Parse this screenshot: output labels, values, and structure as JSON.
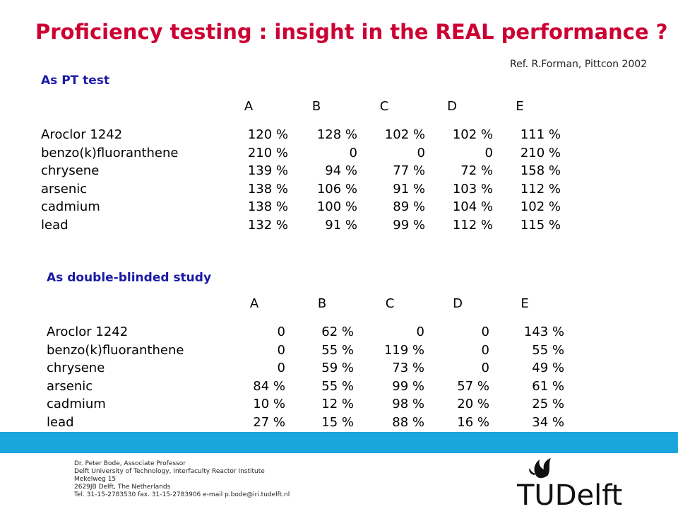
{
  "title": "Proficiency testing : insight in the REAL performance ?",
  "reference": "Ref. R.Forman, Pittcon 2002",
  "sections": [
    {
      "heading": "As PT test",
      "columns": [
        "A",
        "B",
        "C",
        "D",
        "E"
      ],
      "rows": [
        {
          "label": "Aroclor 1242",
          "values": [
            "120 %",
            "128 %",
            "102 %",
            "102 %",
            "111 %"
          ]
        },
        {
          "label": "benzo(k)fluoranthene",
          "values": [
            "210 %",
            "0",
            "0",
            "0",
            "210 %"
          ]
        },
        {
          "label": "chrysene",
          "values": [
            "139 %",
            "94 %",
            "77 %",
            "72 %",
            "158 %"
          ]
        },
        {
          "label": "arsenic",
          "values": [
            "138 %",
            "106 %",
            "91 %",
            "103 %",
            "112 %"
          ]
        },
        {
          "label": "cadmium",
          "values": [
            "138 %",
            "100 %",
            "89 %",
            "104 %",
            "102 %"
          ]
        },
        {
          "label": "lead",
          "values": [
            "132 %",
            "91 %",
            "99 %",
            "112 %",
            "115 %"
          ]
        }
      ]
    },
    {
      "heading": "As double-blinded  study",
      "columns": [
        "A",
        "B",
        "C",
        "D",
        "E"
      ],
      "rows": [
        {
          "label": "Aroclor 1242",
          "values": [
            "0",
            "62 %",
            "0",
            "0",
            "143 %"
          ]
        },
        {
          "label": "benzo(k)fluoranthene",
          "values": [
            "0",
            "55 %",
            "119 %",
            "0",
            "55 %"
          ]
        },
        {
          "label": "chrysene",
          "values": [
            "0",
            "59 %",
            "73 %",
            "0",
            "49 %"
          ]
        },
        {
          "label": "arsenic",
          "values": [
            "84 %",
            "55 %",
            "99 %",
            "57 %",
            "61 %"
          ]
        },
        {
          "label": "cadmium",
          "values": [
            "10 %",
            "12 %",
            "98 %",
            "20 %",
            "25 %"
          ]
        },
        {
          "label": "lead",
          "values": [
            "27 %",
            "15 %",
            "88 %",
            "16 %",
            "34 %"
          ]
        }
      ]
    }
  ],
  "footer": [
    "Dr. Peter Bode, Associate Professor",
    "Delft University of Technology, Interfaculty Reactor Institute",
    "Mekelweg 15",
    "2629JB Delft, The Netherlands",
    "Tel. 31-15-2783530  fax. 31-15-2783906  e-mail p.bode@iri.tudelft.nl"
  ],
  "logo_text": "TUDelft",
  "colors": {
    "title": "#cc0033",
    "heading": "#1a1aa6",
    "bar": "#1aa5dc"
  }
}
